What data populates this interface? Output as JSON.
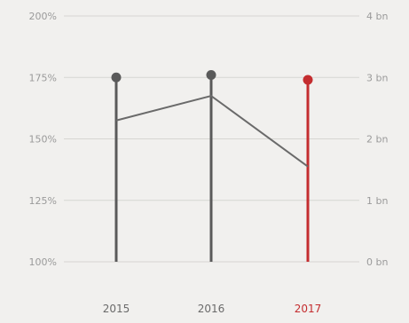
{
  "chart_data": {
    "type": "line",
    "categories": [
      "2015",
      "2016",
      "2017"
    ],
    "y_left": {
      "range": [
        100,
        200
      ],
      "ticks": [
        {
          "value": 100,
          "label": "100%"
        },
        {
          "value": 125,
          "label": "125%"
        },
        {
          "value": 150,
          "label": "150%"
        },
        {
          "value": 175,
          "label": "175%"
        },
        {
          "value": 200,
          "label": "200%"
        }
      ]
    },
    "y_right": {
      "range": [
        0,
        4
      ],
      "ticks": [
        {
          "value": 0,
          "label": "0 bn"
        },
        {
          "value": 1,
          "label": "1 bn"
        },
        {
          "value": 2,
          "label": "2 bn"
        },
        {
          "value": 3,
          "label": "3 bn"
        },
        {
          "value": 4,
          "label": "4 bn"
        }
      ]
    },
    "series": [
      {
        "axis": "left",
        "style": "lollipop",
        "values": [
          175,
          176,
          174
        ]
      },
      {
        "axis": "right",
        "style": "line",
        "values": [
          2.3,
          2.7,
          1.55
        ]
      }
    ],
    "highlight_category": "2017",
    "colors": {
      "background": "#f1f0ee",
      "stem": "#5a5a5a",
      "highlight": "#c42d2f",
      "line": "#6a6a6a",
      "grid": "#d6d5d2",
      "tick_text": "#9a9a9a",
      "category_text": "#6a6a6a"
    },
    "grid": true
  }
}
